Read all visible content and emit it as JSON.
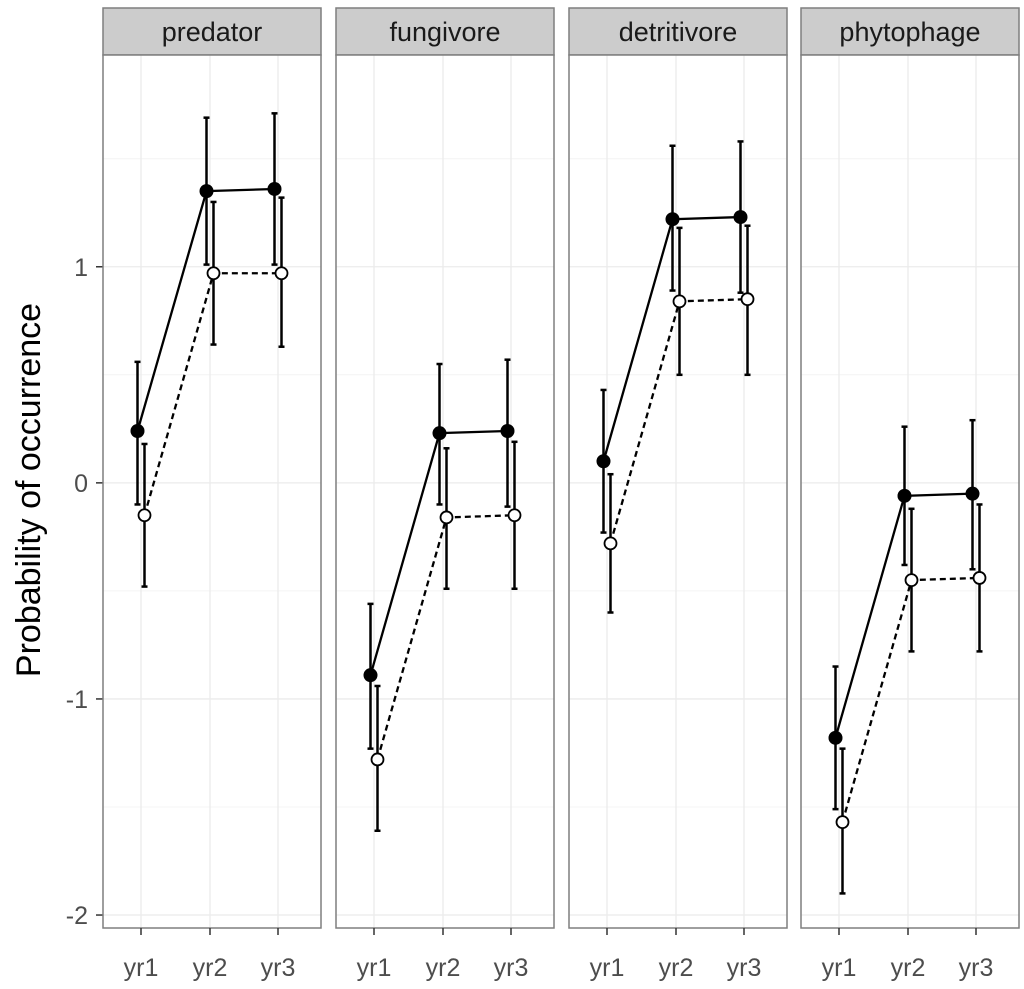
{
  "chart_data": {
    "type": "line",
    "ylabel": "Probability of occurrence",
    "xlabel": "",
    "categories": [
      "yr1",
      "yr2",
      "yr3"
    ],
    "ylim": [
      -2.06,
      1.98
    ],
    "yticks": [
      -2,
      -1,
      0,
      1
    ],
    "ytick_labels": [
      "-2",
      "-1",
      "0",
      "1"
    ],
    "grid": true,
    "facets": [
      {
        "title": "predator",
        "series": [
          {
            "name": "filled",
            "marker": "filled",
            "line": "solid",
            "values": [
              0.24,
              1.35,
              1.36
            ],
            "lower": [
              -0.1,
              1.01,
              1.01
            ],
            "upper": [
              0.56,
              1.69,
              1.71
            ]
          },
          {
            "name": "open",
            "marker": "open",
            "line": "dashed",
            "values": [
              -0.15,
              0.97,
              0.97
            ],
            "lower": [
              -0.48,
              0.64,
              0.63
            ],
            "upper": [
              0.18,
              1.3,
              1.32
            ]
          }
        ]
      },
      {
        "title": "fungivore",
        "series": [
          {
            "name": "filled",
            "marker": "filled",
            "line": "solid",
            "values": [
              -0.89,
              0.23,
              0.24
            ],
            "lower": [
              -1.23,
              -0.1,
              -0.11
            ],
            "upper": [
              -0.56,
              0.55,
              0.57
            ]
          },
          {
            "name": "open",
            "marker": "open",
            "line": "dashed",
            "values": [
              -1.28,
              -0.16,
              -0.15
            ],
            "lower": [
              -1.61,
              -0.49,
              -0.49
            ],
            "upper": [
              -0.94,
              0.16,
              0.19
            ]
          }
        ]
      },
      {
        "title": "detritivore",
        "series": [
          {
            "name": "filled",
            "marker": "filled",
            "line": "solid",
            "values": [
              0.1,
              1.22,
              1.23
            ],
            "lower": [
              -0.23,
              0.89,
              0.88
            ],
            "upper": [
              0.43,
              1.56,
              1.58
            ]
          },
          {
            "name": "open",
            "marker": "open",
            "line": "dashed",
            "values": [
              -0.28,
              0.84,
              0.85
            ],
            "lower": [
              -0.6,
              0.5,
              0.5
            ],
            "upper": [
              0.04,
              1.18,
              1.19
            ]
          }
        ]
      },
      {
        "title": "phytophage",
        "series": [
          {
            "name": "filled",
            "marker": "filled",
            "line": "solid",
            "values": [
              -1.18,
              -0.06,
              -0.05
            ],
            "lower": [
              -1.51,
              -0.38,
              -0.4
            ],
            "upper": [
              -0.85,
              0.26,
              0.29
            ]
          },
          {
            "name": "open",
            "marker": "open",
            "line": "dashed",
            "values": [
              -1.57,
              -0.45,
              -0.44
            ],
            "lower": [
              -1.9,
              -0.78,
              -0.78
            ],
            "upper": [
              -1.23,
              -0.12,
              -0.1
            ]
          }
        ]
      }
    ],
    "colors": {
      "panel_background": "#ffffff",
      "panel_border": "#7f7f7f",
      "grid": "#ebebeb",
      "strip_fill": "#cccccc",
      "data": "#000000"
    }
  }
}
